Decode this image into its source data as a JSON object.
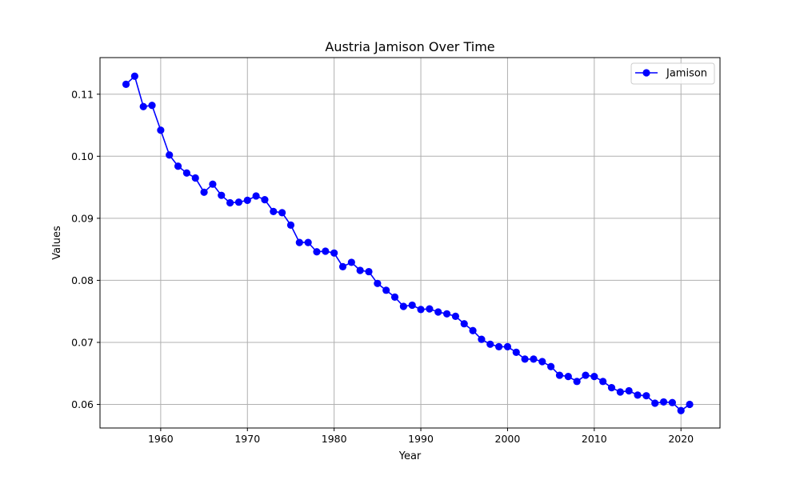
{
  "chart_data": {
    "type": "line",
    "title": "Austria Jamison Over Time",
    "xlabel": "Year",
    "ylabel": "Values",
    "xlim": [
      1953,
      2024.5
    ],
    "ylim": [
      0.0562,
      0.1159
    ],
    "xticks": [
      1960,
      1970,
      1980,
      1990,
      2000,
      2010,
      2020
    ],
    "yticks": [
      0.06,
      0.07,
      0.08,
      0.09,
      0.1,
      0.11
    ],
    "ytick_labels": [
      "0.06",
      "0.07",
      "0.08",
      "0.09",
      "0.10",
      "0.11"
    ],
    "grid": true,
    "legend_position": "top-right",
    "series": [
      {
        "name": "Jamison",
        "color": "#0000ff",
        "marker": "circle",
        "x": [
          1956,
          1957,
          1958,
          1959,
          1960,
          1961,
          1962,
          1963,
          1964,
          1965,
          1966,
          1967,
          1968,
          1969,
          1970,
          1971,
          1972,
          1973,
          1974,
          1975,
          1976,
          1977,
          1978,
          1979,
          1980,
          1981,
          1982,
          1983,
          1984,
          1985,
          1986,
          1987,
          1988,
          1989,
          1990,
          1991,
          1992,
          1993,
          1994,
          1995,
          1996,
          1997,
          1998,
          1999,
          2000,
          2001,
          2002,
          2003,
          2004,
          2005,
          2006,
          2007,
          2008,
          2009,
          2010,
          2011,
          2012,
          2013,
          2014,
          2015,
          2016,
          2017,
          2018,
          2019,
          2020,
          2021
        ],
        "y": [
          0.1116,
          0.1129,
          0.108,
          0.1082,
          0.1042,
          0.1002,
          0.0984,
          0.0973,
          0.0965,
          0.0942,
          0.0955,
          0.0937,
          0.0925,
          0.0926,
          0.0929,
          0.0936,
          0.093,
          0.0911,
          0.0909,
          0.0889,
          0.0861,
          0.0861,
          0.0846,
          0.0847,
          0.0844,
          0.0822,
          0.0829,
          0.0816,
          0.0814,
          0.0795,
          0.0784,
          0.0773,
          0.0758,
          0.076,
          0.0753,
          0.0754,
          0.0749,
          0.0746,
          0.0742,
          0.073,
          0.0719,
          0.0705,
          0.0697,
          0.0693,
          0.0693,
          0.0684,
          0.0673,
          0.0673,
          0.0669,
          0.0661,
          0.0647,
          0.0645,
          0.0637,
          0.0647,
          0.0645,
          0.0637,
          0.0627,
          0.062,
          0.0622,
          0.0615,
          0.0614,
          0.0602,
          0.0604,
          0.0603,
          0.059,
          0.06
        ]
      }
    ]
  }
}
